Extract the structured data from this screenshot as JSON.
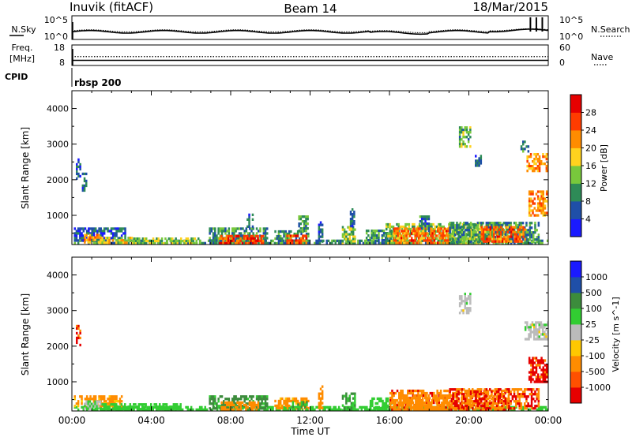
{
  "header": {
    "station": "Inuvik (fitACF)",
    "beam": "Beam 14",
    "date": "18/Mar/2015"
  },
  "nsky_panel": {
    "left_label": "N.Sky",
    "left_ticks": [
      "10^5",
      "10^0"
    ],
    "right_label": "N.Search",
    "right_ticks": [
      "10^5",
      "10^0"
    ]
  },
  "freq_panel": {
    "left_label_1": "Freq.",
    "left_label_2": "[MHz]",
    "left_ticks": [
      "18",
      "8"
    ],
    "right_label": "Nave",
    "right_ticks": [
      "60",
      "0"
    ]
  },
  "cpid": {
    "label": "CPID",
    "value": "rbsp 200"
  },
  "colors": {
    "axis": "#000000",
    "grey_band": "#bbbbbb",
    "power_scale": [
      "#1a1aff",
      "#1f4fa8",
      "#2e8b57",
      "#78c83c",
      "#ffd21e",
      "#ff8c00",
      "#ff3c00",
      "#e60000"
    ],
    "velocity_scale": [
      "#e60000",
      "#ff5000",
      "#ff8c00",
      "#ffc800",
      "#bbbbbb",
      "#32cd32",
      "#3c8c3c",
      "#1f4fa8",
      "#1a1aff"
    ]
  },
  "chart_data": [
    {
      "type": "heatmap",
      "title": "Power",
      "ylabel": "Slant Range [km]",
      "xlabel": "",
      "ylim": [
        180,
        4500
      ],
      "yticks": [
        1000,
        2000,
        3000,
        4000
      ],
      "colorbar": {
        "label": "Power [dB]",
        "ticks": [
          4,
          8,
          12,
          16,
          20,
          24,
          28
        ],
        "range": [
          0,
          32
        ]
      },
      "blobs": [
        {
          "t": [
            0.1,
            24.0
          ],
          "r": [
            200,
            320
          ],
          "v": 10
        },
        {
          "t": [
            0.1,
            2.7
          ],
          "r": [
            320,
            660
          ],
          "v": 6
        },
        {
          "t": [
            0.2,
            0.4
          ],
          "r": [
            2050,
            2600
          ],
          "v": 6
        },
        {
          "t": [
            0.5,
            0.7
          ],
          "r": [
            1700,
            2200
          ],
          "v": 8
        },
        {
          "t": [
            0.6,
            1.4
          ],
          "r": [
            220,
            480
          ],
          "v": 22
        },
        {
          "t": [
            1.4,
            3.0
          ],
          "r": [
            220,
            400
          ],
          "v": 18
        },
        {
          "t": [
            3.0,
            6.5
          ],
          "r": [
            220,
            380
          ],
          "v": 14
        },
        {
          "t": [
            6.9,
            9.8
          ],
          "r": [
            230,
            660
          ],
          "v": 10
        },
        {
          "t": [
            7.4,
            9.6
          ],
          "r": [
            230,
            450
          ],
          "v": 26
        },
        {
          "t": [
            8.8,
            9.1
          ],
          "r": [
            700,
            1050
          ],
          "v": 8
        },
        {
          "t": [
            10.2,
            11.9
          ],
          "r": [
            230,
            580
          ],
          "v": 10
        },
        {
          "t": [
            10.8,
            11.8
          ],
          "r": [
            240,
            460
          ],
          "v": 26
        },
        {
          "t": [
            11.4,
            11.9
          ],
          "r": [
            600,
            1000
          ],
          "v": 10
        },
        {
          "t": [
            12.4,
            12.6
          ],
          "r": [
            280,
            900
          ],
          "v": 8
        },
        {
          "t": [
            13.6,
            14.3
          ],
          "r": [
            220,
            700
          ],
          "v": 14
        },
        {
          "t": [
            14.0,
            14.2
          ],
          "r": [
            700,
            1200
          ],
          "v": 8
        },
        {
          "t": [
            14.8,
            16.1
          ],
          "r": [
            220,
            600
          ],
          "v": 10
        },
        {
          "t": [
            15.8,
            22.0
          ],
          "r": [
            230,
            780
          ],
          "v": 14
        },
        {
          "t": [
            16.2,
            19.0
          ],
          "r": [
            240,
            660
          ],
          "v": 24
        },
        {
          "t": [
            17.5,
            18.0
          ],
          "r": [
            600,
            1000
          ],
          "v": 8
        },
        {
          "t": [
            19.0,
            23.5
          ],
          "r": [
            230,
            820
          ],
          "v": 10
        },
        {
          "t": [
            20.6,
            22.8
          ],
          "r": [
            260,
            700
          ],
          "v": 24
        },
        {
          "t": [
            19.5,
            20.1
          ],
          "r": [
            2950,
            3500
          ],
          "v": 12
        },
        {
          "t": [
            20.3,
            20.6
          ],
          "r": [
            2400,
            2700
          ],
          "v": 8
        },
        {
          "t": [
            22.9,
            24.0
          ],
          "r": [
            2250,
            2750
          ],
          "v": 22
        },
        {
          "t": [
            23.0,
            24.0
          ],
          "r": [
            1000,
            1700
          ],
          "v": 22
        },
        {
          "t": [
            22.6,
            23.0
          ],
          "r": [
            2800,
            3100
          ],
          "v": 8
        }
      ]
    },
    {
      "type": "heatmap",
      "title": "Velocity",
      "ylabel": "Slant Range [km]",
      "xlabel": "Time UT",
      "ylim": [
        180,
        4500
      ],
      "yticks": [
        1000,
        2000,
        3000,
        4000
      ],
      "xticks": [
        "00:00",
        "04:00",
        "08:00",
        "12:00",
        "16:00",
        "20:00",
        "00:00"
      ],
      "colorbar": {
        "label": "Velocity [m s^-1]",
        "ticks": [
          "1000",
          "500",
          "100",
          "25",
          "-25",
          "-100",
          "-500",
          "-1000"
        ],
        "range": [
          -1500,
          1500
        ]
      },
      "blobs": [
        {
          "t": [
            0.1,
            24.0
          ],
          "r": [
            200,
            320
          ],
          "v": 60
        },
        {
          "t": [
            0.1,
            2.5
          ],
          "r": [
            320,
            620
          ],
          "v": -150
        },
        {
          "t": [
            0.2,
            0.4
          ],
          "r": [
            2050,
            2600
          ],
          "v": -700
        },
        {
          "t": [
            0.6,
            1.4
          ],
          "r": [
            220,
            480
          ],
          "v": 20
        },
        {
          "t": [
            1.4,
            5.5
          ],
          "r": [
            220,
            400
          ],
          "v": 60
        },
        {
          "t": [
            6.9,
            9.8
          ],
          "r": [
            230,
            620
          ],
          "v": 150
        },
        {
          "t": [
            7.5,
            9.4
          ],
          "r": [
            230,
            450
          ],
          "v": -200
        },
        {
          "t": [
            10.2,
            11.9
          ],
          "r": [
            230,
            560
          ],
          "v": -150
        },
        {
          "t": [
            11.0,
            11.8
          ],
          "r": [
            240,
            460
          ],
          "v": 80
        },
        {
          "t": [
            12.4,
            12.6
          ],
          "r": [
            280,
            900
          ],
          "v": -300
        },
        {
          "t": [
            13.6,
            14.3
          ],
          "r": [
            220,
            700
          ],
          "v": 120
        },
        {
          "t": [
            15.0,
            16.1
          ],
          "r": [
            220,
            560
          ],
          "v": 60
        },
        {
          "t": [
            16.0,
            22.0
          ],
          "r": [
            230,
            780
          ],
          "v": -400
        },
        {
          "t": [
            16.4,
            19.0
          ],
          "r": [
            240,
            640
          ],
          "v": -300
        },
        {
          "t": [
            19.0,
            23.5
          ],
          "r": [
            230,
            820
          ],
          "v": -500
        },
        {
          "t": [
            19.5,
            20.1
          ],
          "r": [
            2950,
            3500
          ],
          "v": 0
        },
        {
          "t": [
            22.8,
            24.0
          ],
          "r": [
            2200,
            2700
          ],
          "v": 0
        },
        {
          "t": [
            23.0,
            24.0
          ],
          "r": [
            1000,
            1700
          ],
          "v": -800
        }
      ]
    }
  ],
  "summary_plots": {
    "nsky_level": 2.3,
    "nsearch_level": 2.6,
    "freq_level": 10.5,
    "nave_level": 26
  }
}
